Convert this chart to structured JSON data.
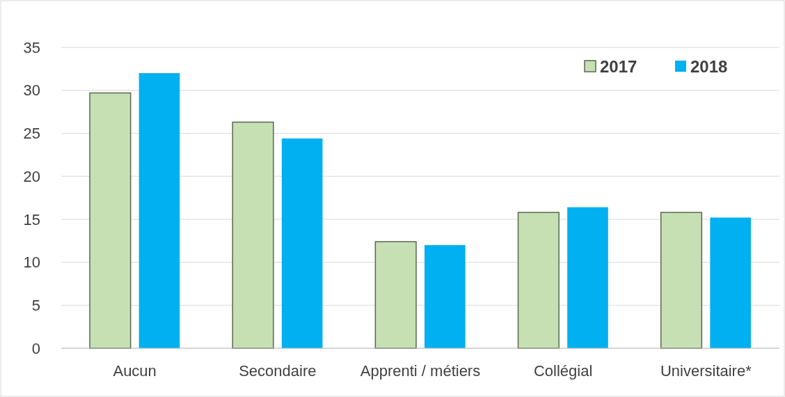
{
  "chart_data": {
    "type": "bar",
    "categories": [
      "Aucun",
      "Secondaire",
      "Apprenti / métiers",
      "Collégial",
      "Universitaire*"
    ],
    "series": [
      {
        "name": "2017",
        "color": "#c6e0b4",
        "values": [
          29.7,
          26.3,
          12.4,
          15.8,
          15.8
        ]
      },
      {
        "name": "2018",
        "color": "#00b0f0",
        "values": [
          32.0,
          24.4,
          12.0,
          16.4,
          15.2
        ]
      }
    ],
    "ylim": [
      0,
      35
    ],
    "yticks": [
      0,
      5,
      10,
      15,
      20,
      25,
      30,
      35
    ],
    "grid": "y",
    "legend": "top right"
  }
}
